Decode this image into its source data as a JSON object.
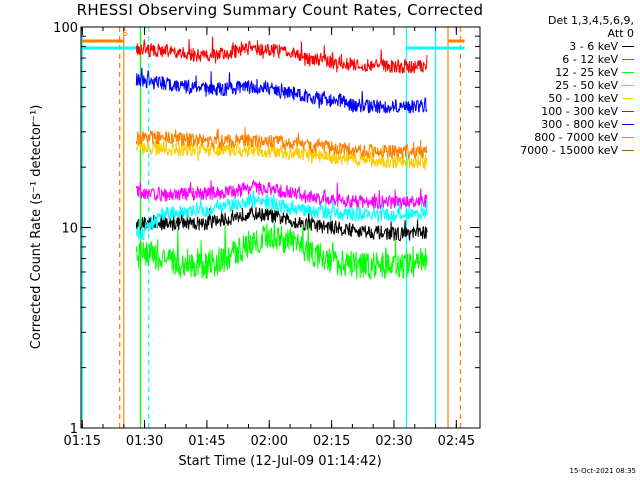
{
  "chart_data": {
    "type": "line",
    "title": "RHESSI Observing Summary Count Rates, Corrected",
    "xlabel": "Start Time (12-Jul-09 01:14:42)",
    "ylabel": "Corrected Count Rate (s⁻¹ detector⁻¹)",
    "yscale": "log",
    "ylim": [
      1,
      100
    ],
    "xlim_minutes": [
      0,
      96
    ],
    "x_ticks": [
      "01:15",
      "01:30",
      "01:45",
      "02:00",
      "02:15",
      "02:30",
      "02:45"
    ],
    "y_ticks": [
      "1",
      "10",
      "100"
    ],
    "grid": false,
    "legend_position": "top-right",
    "legend_header": [
      "Det 1,3,4,5,6,9,",
      "Att 0"
    ],
    "footer": "15-Oct-2021 08:35",
    "flags": [
      {
        "label": "S",
        "color": "#ff7f00",
        "start": "01:15",
        "end": "01:25"
      },
      {
        "label": "",
        "color": "#00ffff",
        "start": "01:15",
        "end": "01:29"
      },
      {
        "label": "",
        "color": "#00ffff",
        "start": "02:33",
        "end": "02:47"
      },
      {
        "label": "",
        "color": "#ff7f00",
        "start": "02:43",
        "end": "02:47"
      }
    ],
    "markers": [
      {
        "time": "01:15",
        "color": "#00ffff",
        "style": "solid"
      },
      {
        "time": "01:24",
        "color": "#ff7f00",
        "style": "dashed"
      },
      {
        "time": "01:25",
        "color": "#ff7f00",
        "style": "solid"
      },
      {
        "time": "01:29",
        "color": "#00ff00",
        "style": "solid"
      },
      {
        "time": "01:31",
        "color": "#00ffff",
        "style": "dashed"
      },
      {
        "time": "02:33",
        "color": "#00ffff",
        "style": "solid"
      },
      {
        "time": "02:40",
        "color": "#00ffff",
        "style": "solid"
      },
      {
        "time": "02:43",
        "color": "#ff7f00",
        "style": "solid"
      },
      {
        "time": "02:46",
        "color": "#ff7f00",
        "style": "dashed"
      }
    ],
    "series": [
      {
        "name": "3 - 6 keV",
        "color": "#000000",
        "t": [
          "01:28",
          "01:30",
          "01:35",
          "01:40",
          "01:45",
          "01:50",
          "01:55",
          "02:00",
          "02:05",
          "02:10",
          "02:15",
          "02:20",
          "02:25",
          "02:30",
          "02:35",
          "02:38"
        ],
        "values": [
          10.5,
          10.5,
          10.4,
          10.5,
          10.5,
          11,
          11.8,
          11.5,
          10.8,
          10.3,
          10,
          9.7,
          9.5,
          9.3,
          9.3,
          9.5
        ]
      },
      {
        "name": "6 - 12 keV",
        "color": "#ff00ff",
        "t": [
          "01:28",
          "01:30",
          "01:35",
          "01:40",
          "01:45",
          "01:50",
          "01:55",
          "02:00",
          "02:05",
          "02:10",
          "02:15",
          "02:20",
          "02:25",
          "02:30",
          "02:35",
          "02:38"
        ],
        "values": [
          15,
          15,
          14.5,
          14.7,
          14.8,
          15,
          15.8,
          15.5,
          14.8,
          14.2,
          13.8,
          13.5,
          13.3,
          13.3,
          13.3,
          13.5
        ]
      },
      {
        "name": "12 - 25 keV",
        "color": "#00ff00",
        "t": [
          "01:28",
          "01:30",
          "01:35",
          "01:40",
          "01:45",
          "01:50",
          "01:55",
          "02:00",
          "02:05",
          "02:10",
          "02:15",
          "02:20",
          "02:25",
          "02:30",
          "02:35",
          "02:38"
        ],
        "values": [
          7.2,
          7.5,
          6.8,
          6.5,
          6.5,
          7,
          8.3,
          9.2,
          8.5,
          7.5,
          6.8,
          6.5,
          6.5,
          6.5,
          6.5,
          7
        ]
      },
      {
        "name": "25 - 50 keV",
        "color": "#00ffff",
        "t": [
          "01:28",
          "01:30",
          "01:35",
          "01:40",
          "01:45",
          "01:50",
          "01:55",
          "02:00",
          "02:05",
          "02:10",
          "02:15",
          "02:20",
          "02:25",
          "02:30",
          "02:35",
          "02:38"
        ],
        "values": [
          8.8,
          9.5,
          11.8,
          12,
          12.2,
          12.8,
          13.5,
          13.2,
          12.5,
          12,
          11.8,
          11.7,
          11.6,
          11.5,
          11.6,
          11.8
        ]
      },
      {
        "name": "50 - 100 keV",
        "color": "#ffcc00",
        "t": [
          "01:28",
          "01:30",
          "01:35",
          "01:40",
          "01:45",
          "01:50",
          "01:55",
          "02:00",
          "02:05",
          "02:10",
          "02:15",
          "02:20",
          "02:25",
          "02:30",
          "02:35",
          "02:38"
        ],
        "values": [
          25,
          25,
          24.5,
          24.5,
          24.5,
          24.3,
          24.3,
          24,
          23.5,
          23,
          22.5,
          22,
          21.5,
          21.3,
          21.3,
          21.5
        ]
      },
      {
        "name": "100 - 300 keV",
        "color": "#ff0000",
        "t": [
          "01:28",
          "01:30",
          "01:35",
          "01:40",
          "01:45",
          "01:50",
          "01:55",
          "02:00",
          "02:05",
          "02:10",
          "02:15",
          "02:20",
          "02:25",
          "02:30",
          "02:35",
          "02:38"
        ],
        "values": [
          78,
          77,
          76,
          73,
          72,
          74,
          78,
          77,
          74,
          70,
          67,
          65,
          64,
          64,
          63,
          64
        ]
      },
      {
        "name": "300 - 800 keV",
        "color": "#0000ff",
        "t": [
          "01:28",
          "01:30",
          "01:35",
          "01:40",
          "01:45",
          "01:50",
          "01:55",
          "02:00",
          "02:05",
          "02:10",
          "02:15",
          "02:20",
          "02:25",
          "02:30",
          "02:35",
          "02:38"
        ],
        "values": [
          55,
          54,
          52,
          50,
          49,
          49,
          50,
          49,
          47,
          45,
          43,
          41,
          40,
          40,
          40,
          41
        ]
      },
      {
        "name": "800 - 7000 keV",
        "color": "#ff7f00",
        "t": [
          "01:28",
          "01:30",
          "01:35",
          "01:40",
          "01:45",
          "01:50",
          "01:55",
          "02:00",
          "02:05",
          "02:10",
          "02:15",
          "02:20",
          "02:25",
          "02:30",
          "02:35",
          "02:38"
        ],
        "values": [
          28,
          28,
          28,
          27.5,
          27,
          27,
          27,
          26.8,
          26.2,
          25.5,
          25,
          24.5,
          24,
          23.8,
          23.8,
          24
        ]
      },
      {
        "name": "7000 - 15000 keV",
        "color": "#a06000",
        "t": [],
        "values": []
      }
    ]
  }
}
